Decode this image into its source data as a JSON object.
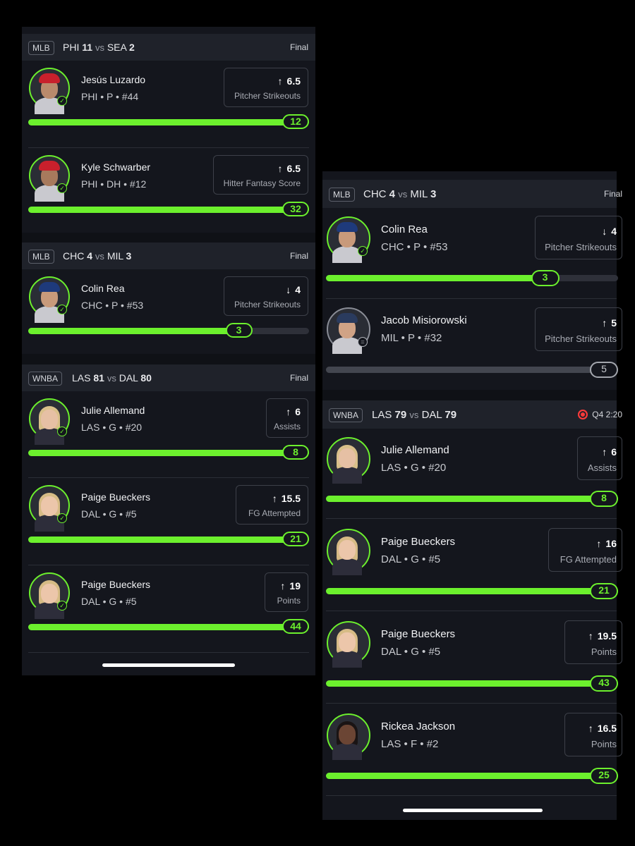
{
  "left": {
    "games": [
      {
        "league": "MLB",
        "team1": "PHI",
        "score1": "11",
        "vs": "vs",
        "team2": "SEA",
        "score2": "2",
        "status": "Final",
        "players": [
          {
            "name": "Jesús Luzardo",
            "info": "PHI • P • #44",
            "direction": "↑",
            "line": "6.5",
            "stat": "Pitcher Strikeouts",
            "result": "12",
            "progress_pct": 100
          },
          {
            "name": "Kyle Schwarber",
            "info": "PHI • DH • #12",
            "direction": "↑",
            "line": "6.5",
            "stat": "Hitter Fantasy Score",
            "result": "32",
            "progress_pct": 100
          }
        ]
      },
      {
        "league": "MLB",
        "team1": "CHC",
        "score1": "4",
        "vs": "vs",
        "team2": "MIL",
        "score2": "3",
        "status": "Final",
        "players": [
          {
            "name": "Colin Rea",
            "info": "CHC • P • #53",
            "direction": "↓",
            "line": "4",
            "stat": "Pitcher Strikeouts",
            "result": "3",
            "progress_pct": 75
          }
        ]
      },
      {
        "league": "WNBA",
        "team1": "LAS",
        "score1": "81",
        "vs": "vs",
        "team2": "DAL",
        "score2": "80",
        "status": "Final",
        "players": [
          {
            "name": "Julie Allemand",
            "info": "LAS • G • #20",
            "direction": "↑",
            "line": "6",
            "stat": "Assists",
            "result": "8",
            "progress_pct": 100
          },
          {
            "name": "Paige Bueckers",
            "info": "DAL • G • #5",
            "direction": "↑",
            "line": "15.5",
            "stat": "FG Attempted",
            "result": "21",
            "progress_pct": 100
          },
          {
            "name": "Paige Bueckers",
            "info": "DAL • G • #5",
            "direction": "↑",
            "line": "19",
            "stat": "Points",
            "result": "44",
            "progress_pct": 100
          }
        ]
      }
    ]
  },
  "right": {
    "games": [
      {
        "league": "MLB",
        "team1": "CHC",
        "score1": "4",
        "vs": "vs",
        "team2": "MIL",
        "score2": "3",
        "status": "Final",
        "players": [
          {
            "name": "Colin Rea",
            "info": "CHC • P • #53",
            "direction": "↓",
            "line": "4",
            "stat": "Pitcher Strikeouts",
            "result": "3",
            "progress_pct": 75
          },
          {
            "name": "Jacob Misiorowski",
            "info": "MIL • P • #32",
            "direction": "↑",
            "line": "5",
            "stat": "Pitcher Strikeouts",
            "result": "5",
            "progress_pct": 100
          }
        ]
      },
      {
        "league": "WNBA",
        "team1": "LAS",
        "score1": "79",
        "vs": "vs",
        "team2": "DAL",
        "score2": "79",
        "status": "Q4 2:20",
        "players": [
          {
            "name": "Julie Allemand",
            "info": "LAS • G • #20",
            "direction": "↑",
            "line": "6",
            "stat": "Assists",
            "result": "8",
            "progress_pct": 100
          },
          {
            "name": "Paige Bueckers",
            "info": "DAL • G • #5",
            "direction": "↑",
            "line": "16",
            "stat": "FG Attempted",
            "result": "21",
            "progress_pct": 100
          },
          {
            "name": "Paige Bueckers",
            "info": "DAL • G • #5",
            "direction": "↑",
            "line": "19.5",
            "stat": "Points",
            "result": "43",
            "progress_pct": 100
          },
          {
            "name": "Rickea Jackson",
            "info": "LAS • F • #2",
            "direction": "↑",
            "line": "16.5",
            "stat": "Points",
            "result": "25",
            "progress_pct": 100
          }
        ]
      }
    ]
  },
  "colors": {
    "accent": "#6cf02d",
    "background": "#000000",
    "panel": "#14161d",
    "header": "#1f222a",
    "live": "#ff3b3b",
    "muted": "#43464f"
  }
}
